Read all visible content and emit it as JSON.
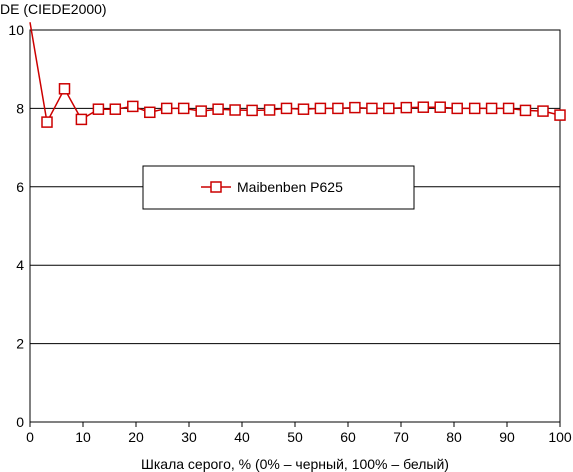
{
  "chart_data": {
    "type": "line",
    "title": "",
    "ylabel": "DE (CIEDE2000)",
    "xlabel": "Шкала серого, % (0% – черный, 100% – белый)",
    "xlim": [
      0,
      100
    ],
    "ylim": [
      0,
      10
    ],
    "x_ticks": [
      "0",
      "10",
      "20",
      "30",
      "40",
      "50",
      "60",
      "70",
      "80",
      "90",
      "100"
    ],
    "y_ticks": [
      "0",
      "2",
      "4",
      "6",
      "8",
      "10"
    ],
    "grid": "horizontal",
    "legend_position": "center",
    "series": [
      {
        "name": "Maibenben P625",
        "color": "#cc0000",
        "marker": "square-open",
        "x": [
          0,
          3.2,
          6.5,
          9.7,
          12.9,
          16.1,
          19.4,
          22.6,
          25.8,
          29.0,
          32.3,
          35.5,
          38.7,
          41.9,
          45.2,
          48.4,
          51.6,
          54.8,
          58.1,
          61.3,
          64.5,
          67.7,
          71.0,
          74.2,
          77.4,
          80.6,
          83.9,
          87.1,
          90.3,
          93.5,
          96.8,
          100
        ],
        "values": [
          10.2,
          7.65,
          8.5,
          7.72,
          7.98,
          7.98,
          8.05,
          7.9,
          8.0,
          8.0,
          7.93,
          7.98,
          7.96,
          7.95,
          7.96,
          8.0,
          7.98,
          8.0,
          8.0,
          8.02,
          8.0,
          8.0,
          8.02,
          8.03,
          8.03,
          8.0,
          8.0,
          8.0,
          8.0,
          7.95,
          7.93,
          7.83
        ]
      }
    ]
  }
}
